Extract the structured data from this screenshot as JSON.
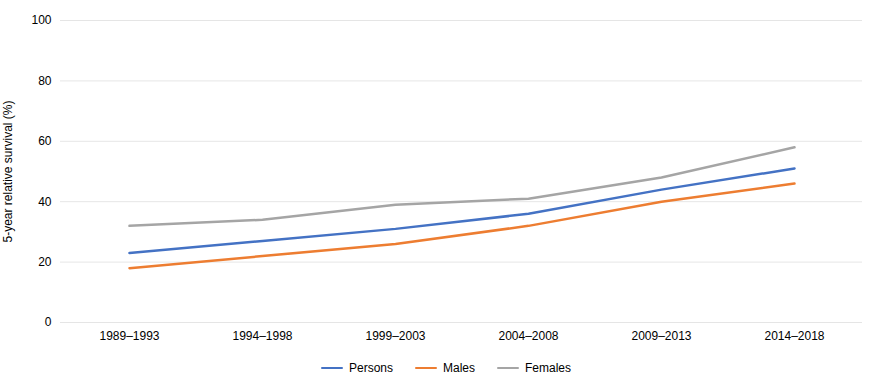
{
  "chart_data": {
    "type": "line",
    "categories": [
      "1989–1993",
      "1994–1998",
      "1999–2003",
      "2004–2008",
      "2009–2013",
      "2014–2018"
    ],
    "series": [
      {
        "name": "Persons",
        "color": "#4472C4",
        "values": [
          23,
          27,
          31,
          36,
          44,
          51
        ]
      },
      {
        "name": "Males",
        "color": "#ED7D31",
        "values": [
          18,
          22,
          26,
          32,
          40,
          46
        ]
      },
      {
        "name": "Females",
        "color": "#A5A5A5",
        "values": [
          32,
          34,
          39,
          41,
          48,
          58
        ]
      }
    ],
    "ylabel": "5-year relative survival (%)",
    "ylim": [
      0,
      100
    ],
    "yticks": [
      0,
      20,
      40,
      60,
      80,
      100
    ],
    "grid": true,
    "legend": "bottom"
  }
}
